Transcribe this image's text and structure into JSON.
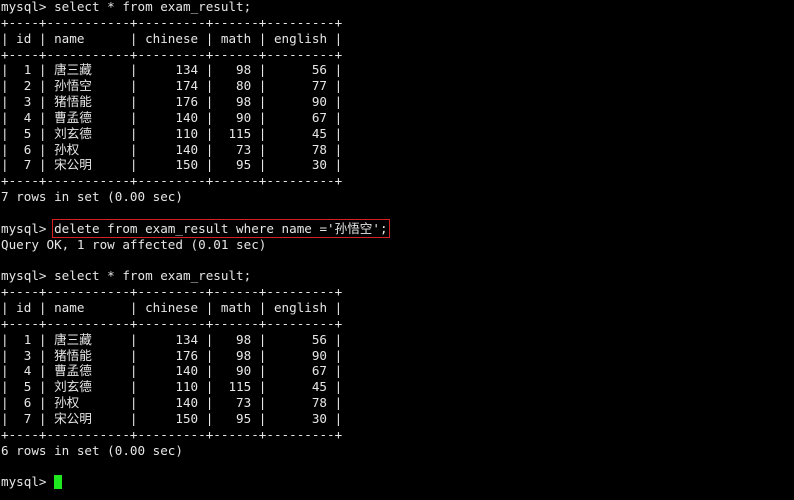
{
  "prompt": "mysql> ",
  "commands": {
    "select1": "select * from exam_result;",
    "delete": "delete from exam_result where name ='孙悟空';",
    "select2": "select * from exam_result;"
  },
  "columns": [
    "id",
    "name",
    "chinese",
    "math",
    "english"
  ],
  "table1": [
    [
      "1",
      "唐三藏",
      "134",
      "98",
      "56"
    ],
    [
      "2",
      "孙悟空",
      "174",
      "80",
      "77"
    ],
    [
      "3",
      "猪悟能",
      "176",
      "98",
      "90"
    ],
    [
      "4",
      "曹孟德",
      "140",
      "90",
      "67"
    ],
    [
      "5",
      "刘玄德",
      "110",
      "115",
      "45"
    ],
    [
      "6",
      "孙权",
      "140",
      "73",
      "78"
    ],
    [
      "7",
      "宋公明",
      "150",
      "95",
      "30"
    ]
  ],
  "table2": [
    [
      "1",
      "唐三藏",
      "134",
      "98",
      "56"
    ],
    [
      "3",
      "猪悟能",
      "176",
      "98",
      "90"
    ],
    [
      "4",
      "曹孟德",
      "140",
      "90",
      "67"
    ],
    [
      "5",
      "刘玄德",
      "110",
      "115",
      "45"
    ],
    [
      "6",
      "孙权",
      "140",
      "73",
      "78"
    ],
    [
      "7",
      "宋公明",
      "150",
      "95",
      "30"
    ]
  ],
  "result1": "7 rows in set (0.00 sec)",
  "delete_result": "Query OK, 1 row affected (0.01 sec)",
  "result2": "6 rows in set (0.00 sec)",
  "colors": {
    "background": "#000000",
    "text": "#e6e6e6",
    "highlight_box": "#d42020",
    "cursor": "#1ee81e"
  }
}
